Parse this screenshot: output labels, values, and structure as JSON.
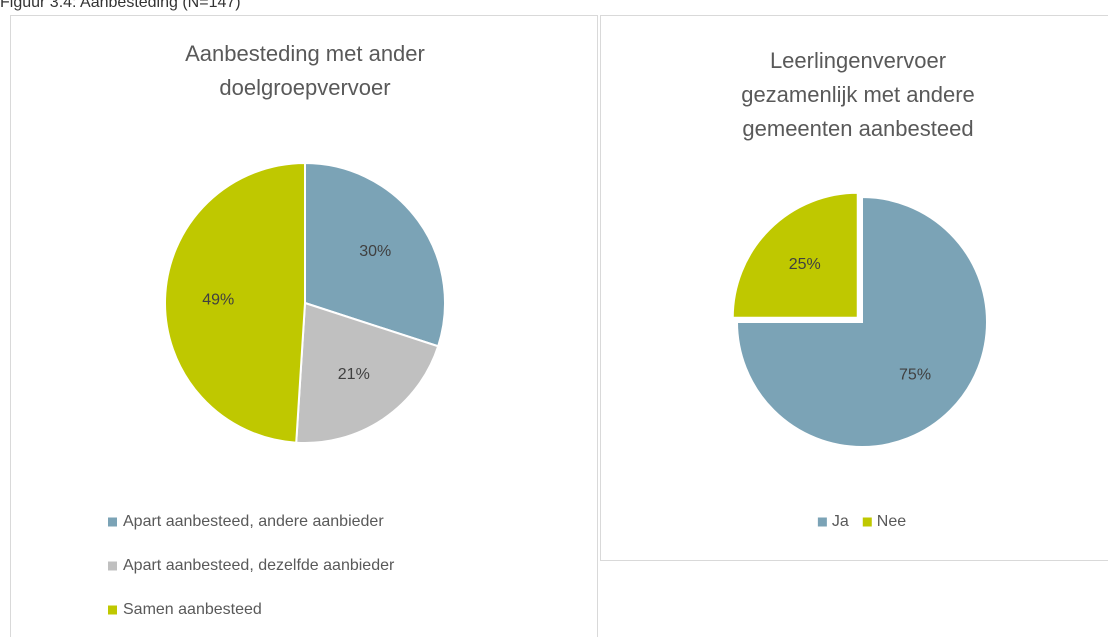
{
  "caption": "Figuur 3.4: Aanbesteding (N=147)",
  "chart_data": [
    {
      "type": "pie",
      "title": "Aanbesteding met ander doelgroepvervoer",
      "categories": [
        "Apart aanbesteed, andere aanbieder",
        "Apart aanbesteed, dezelfde aanbieder",
        "Samen aanbesteed"
      ],
      "values": [
        30,
        21,
        49
      ],
      "value_labels": [
        "30%",
        "21%",
        "49%"
      ],
      "colors": [
        "#7ba3b6",
        "#c0c0c0",
        "#bfc800"
      ],
      "legend": "bottom"
    },
    {
      "type": "pie",
      "title": "Leerlingenvervoer gezamenlijk met andere gemeenten aanbesteed",
      "categories": [
        "Ja",
        "Nee"
      ],
      "values": [
        75,
        25
      ],
      "value_labels": [
        "75%",
        "25%"
      ],
      "colors": [
        "#7ba3b6",
        "#bfc800"
      ],
      "legend": "bottom"
    }
  ]
}
